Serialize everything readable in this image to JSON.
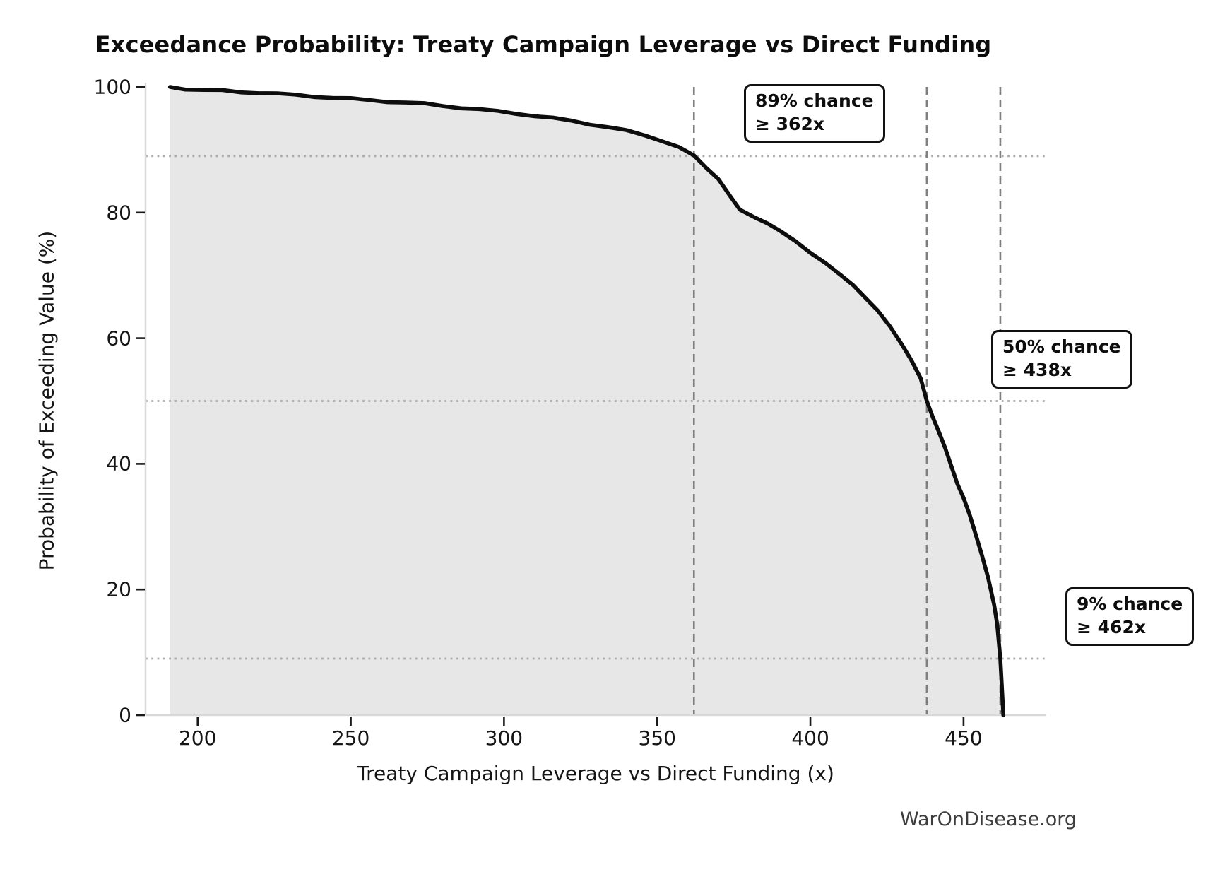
{
  "title": "Exceedance Probability: Treaty Campaign Leverage vs Direct Funding",
  "watermark": "WarOnDisease.org",
  "chart_data": {
    "type": "line",
    "title": "Exceedance Probability: Treaty Campaign Leverage vs Direct Funding",
    "xlabel": "Treaty Campaign Leverage vs Direct Funding (x)",
    "ylabel": "Probability of Exceeding Value (%)",
    "xlim": [
      183,
      477
    ],
    "ylim": [
      0,
      100
    ],
    "x_ticks": [
      200,
      250,
      300,
      350,
      400,
      450
    ],
    "y_ticks": [
      0,
      20,
      40,
      60,
      80,
      100
    ],
    "grid": "guide lines only (dotted horizontal at annotated probabilities, dashed vertical at annotated values)",
    "legend": "none",
    "fill_under_curve": true,
    "series": [
      {
        "name": "exceedance-curve",
        "points": [
          [
            191,
            100
          ],
          [
            196,
            99.7
          ],
          [
            202,
            99.5
          ],
          [
            208,
            99.4
          ],
          [
            214,
            99.2
          ],
          [
            220,
            99.1
          ],
          [
            226,
            98.9
          ],
          [
            232,
            98.7
          ],
          [
            238,
            98.5
          ],
          [
            244,
            98.3
          ],
          [
            250,
            98.1
          ],
          [
            256,
            97.9
          ],
          [
            262,
            97.7
          ],
          [
            268,
            97.5
          ],
          [
            274,
            97.3
          ],
          [
            280,
            97.0
          ],
          [
            286,
            96.7
          ],
          [
            292,
            96.4
          ],
          [
            298,
            96.1
          ],
          [
            304,
            95.8
          ],
          [
            310,
            95.4
          ],
          [
            316,
            95.0
          ],
          [
            322,
            94.6
          ],
          [
            328,
            94.1
          ],
          [
            334,
            93.6
          ],
          [
            340,
            93.0
          ],
          [
            346,
            92.3
          ],
          [
            352,
            91.4
          ],
          [
            357,
            90.4
          ],
          [
            362,
            89.0
          ],
          [
            366,
            87.2
          ],
          [
            370,
            85.4
          ],
          [
            374,
            82.4
          ],
          [
            377,
            80.4
          ],
          [
            382,
            79.3
          ],
          [
            386,
            78.3
          ],
          [
            390,
            77.0
          ],
          [
            395,
            75.5
          ],
          [
            400,
            73.7
          ],
          [
            405,
            71.9
          ],
          [
            410,
            69.9
          ],
          [
            414,
            68.5
          ],
          [
            418,
            66.5
          ],
          [
            422,
            64.3
          ],
          [
            426,
            61.8
          ],
          [
            430,
            59.0
          ],
          [
            433,
            56.5
          ],
          [
            436,
            53.5
          ],
          [
            438,
            50.0
          ],
          [
            440,
            47.5
          ],
          [
            442,
            45.0
          ],
          [
            444,
            42.4
          ],
          [
            446,
            39.7
          ],
          [
            448,
            36.9
          ],
          [
            450,
            34.5
          ],
          [
            452,
            31.8
          ],
          [
            454,
            28.8
          ],
          [
            456,
            25.5
          ],
          [
            458,
            21.8
          ],
          [
            460,
            17.5
          ],
          [
            461,
            14.5
          ],
          [
            462,
            9.0
          ],
          [
            462.6,
            3.5
          ],
          [
            463,
            0.0
          ]
        ]
      }
    ],
    "annotations": [
      {
        "line1": "89% chance",
        "line2": "≥ 362x",
        "x": 362,
        "p": 89
      },
      {
        "line1": "50% chance",
        "line2": "≥ 438x",
        "x": 438,
        "p": 50
      },
      {
        "line1": "9% chance",
        "line2": "≥ 462x",
        "x": 462,
        "p": 9
      }
    ],
    "colors": {
      "curve": "#0d0d0d",
      "fill": "#e7e7e7",
      "dashed_guide": "#7f7f7f",
      "dotted_guide": "#ababab",
      "spine": "#d9d9d9",
      "tick": "#1a1a1a"
    }
  }
}
